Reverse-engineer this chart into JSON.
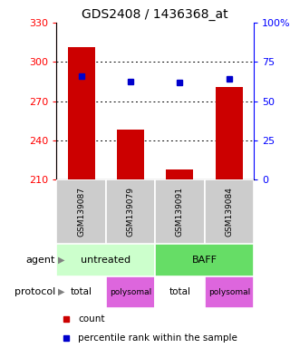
{
  "title": "GDS2408 / 1436368_at",
  "samples": [
    "GSM139087",
    "GSM139079",
    "GSM139091",
    "GSM139084"
  ],
  "bar_values": [
    311,
    248,
    218,
    281
  ],
  "bar_color": "#cc0000",
  "percentile_values": [
    289,
    285,
    284,
    287
  ],
  "percentile_color": "#0000cc",
  "ylim_left": [
    210,
    330
  ],
  "ylim_right": [
    0,
    100
  ],
  "yticks_left": [
    210,
    240,
    270,
    300,
    330
  ],
  "yticks_right": [
    0,
    25,
    50,
    75,
    100
  ],
  "ytick_labels_right": [
    "0",
    "25",
    "50",
    "75",
    "100%"
  ],
  "agent_colors": [
    "#ccffcc",
    "#66dd66"
  ],
  "protocol_colors": [
    "#ee88ee",
    "#ee88ee",
    "#ee88ee",
    "#ee88ee"
  ],
  "protocol_total_color": "#ffffff",
  "protocol_polysomal_color": "#dd66dd",
  "grid_color": "#000000",
  "bar_width": 0.55,
  "sample_bg": "#cccccc",
  "legend_count_color": "#cc0000",
  "legend_percentile_color": "#0000cc"
}
